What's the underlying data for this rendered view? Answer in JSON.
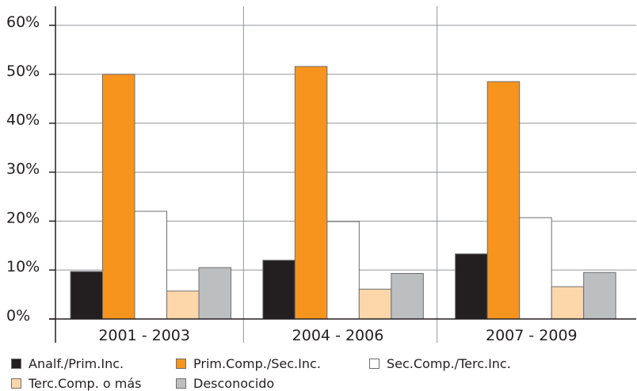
{
  "chart_data": {
    "type": "bar",
    "categories": [
      "2001 - 2003",
      "2004 - 2006",
      "2007 - 2009"
    ],
    "series": [
      {
        "name": "Analf./Prim.Inc.",
        "color": "#231f20",
        "values": [
          9.7,
          12.0,
          13.3
        ]
      },
      {
        "name": "Prim.Comp./Sec.Inc.",
        "color": "#f7941d",
        "values": [
          50.0,
          51.6,
          48.5
        ]
      },
      {
        "name": "Sec.Comp./Terc.Inc.",
        "color": "#ffffff",
        "values": [
          22.0,
          19.9,
          20.7
        ]
      },
      {
        "name": "Terc.Comp. o más",
        "color": "#fdd6aa",
        "values": [
          5.7,
          6.1,
          6.6
        ]
      },
      {
        "name": "Desconocido",
        "color": "#bcbec0",
        "values": [
          10.5,
          9.3,
          9.5
        ]
      }
    ],
    "yticks": [
      "0%",
      "10%",
      "20%",
      "30%",
      "40%",
      "50%",
      "60%"
    ],
    "ylim": [
      0,
      60
    ],
    "grid": true,
    "legend": "bottom"
  }
}
